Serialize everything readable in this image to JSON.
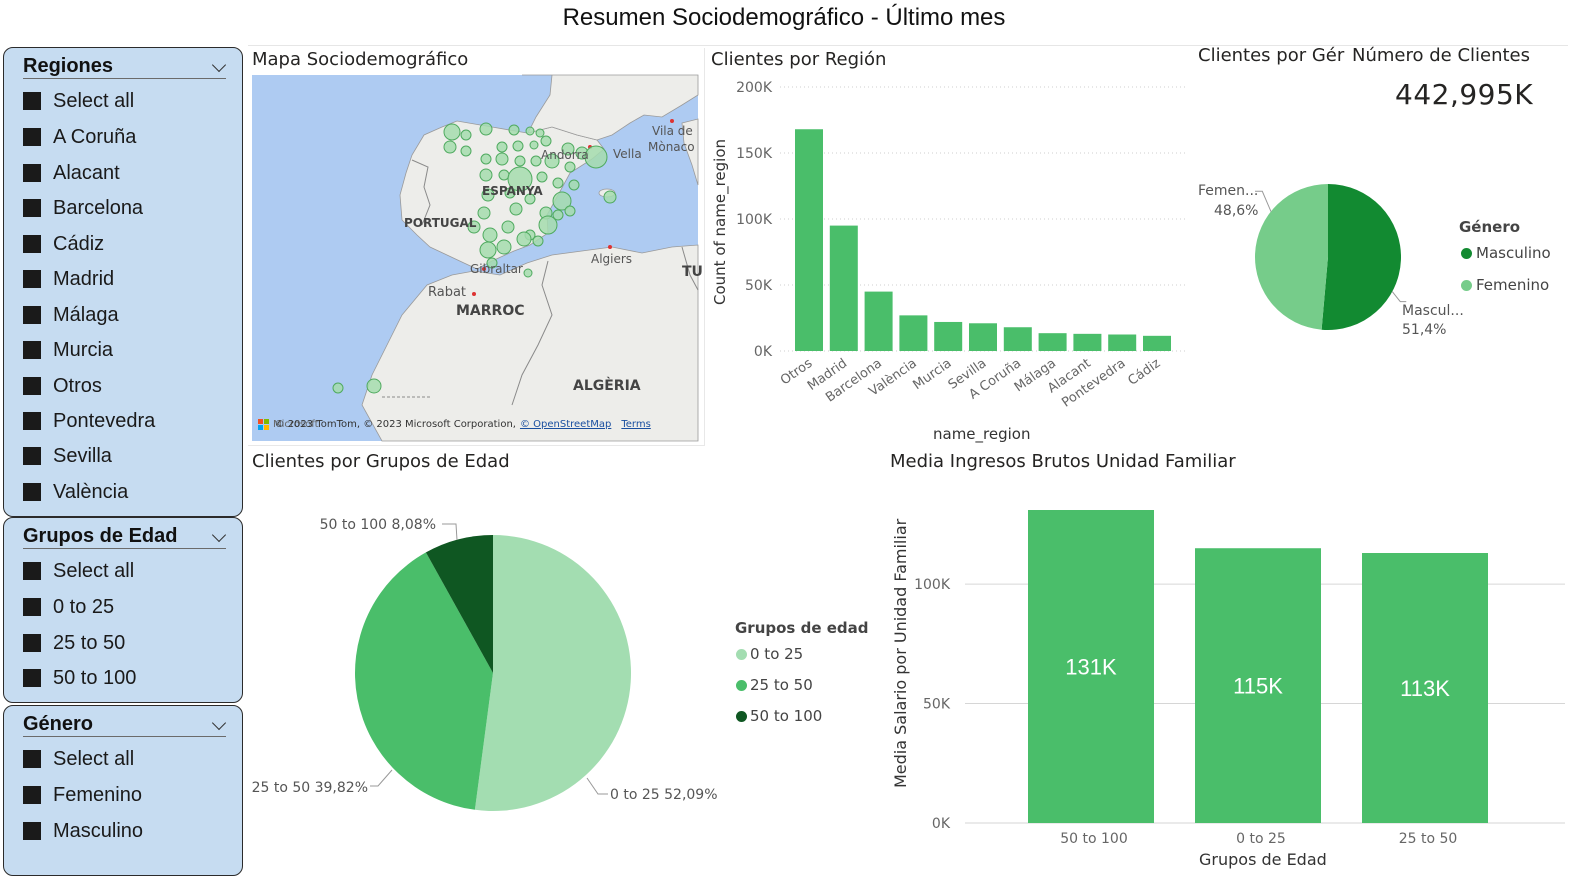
{
  "page": {
    "title": "Resumen Sociodemográfico - Último mes"
  },
  "slicers": {
    "regions": {
      "title": "Regiones",
      "items": [
        "Select all",
        "A Coruña",
        "Alacant",
        "Barcelona",
        "Cádiz",
        "Madrid",
        "Málaga",
        "Murcia",
        "Otros",
        "Pontevedra",
        "Sevilla",
        "València"
      ]
    },
    "age": {
      "title": "Grupos de Edad",
      "items": [
        "Select all",
        "0 to 25",
        "25 to 50",
        "50 to 100"
      ]
    },
    "gender": {
      "title": "Género",
      "items": [
        "Select all",
        "Femenino",
        "Masculino"
      ]
    }
  },
  "map": {
    "title": "Mapa Sociodemográfico",
    "labels": {
      "portugal": "PORTUGAL",
      "espanya": "ESPANYA",
      "andorra": "Andorra",
      "vella": "Vella",
      "vila_de": "Vila de",
      "monaco": "Mònaco",
      "gibraltar": "Gibraltar",
      "algiers": "Algiers",
      "rabat": "Rabat",
      "marroc": "MARROC",
      "algeria": "ALGÈRIA",
      "tu": "TU"
    },
    "attribution": {
      "logo": "Microsoft",
      "text": "© 2023 TomTom, © 2023 Microsoft Corporation,",
      "osm": "© OpenStreetMap",
      "terms": "Terms"
    }
  },
  "region_chart": {
    "title": "Clientes por Región",
    "chart_data": {
      "type": "bar",
      "categories": [
        "Otros",
        "Madrid",
        "Barcelona",
        "València",
        "Murcia",
        "Sevilla",
        "A Coruña",
        "Málaga",
        "Alacant",
        "Pontevedra",
        "Cádiz"
      ],
      "values": [
        168000,
        95000,
        45000,
        27000,
        22000,
        21000,
        18000,
        13500,
        13000,
        12500,
        11500
      ],
      "xlabel": "name_region",
      "ylabel": "Count of name_region",
      "ylim": [
        0,
        200000
      ],
      "ticks": [
        0,
        50000,
        100000,
        150000,
        200000
      ],
      "tick_labels": [
        "0K",
        "50K",
        "100K",
        "150K",
        "200K"
      ],
      "grid": true,
      "color": "#4abe6a"
    }
  },
  "gender_chart": {
    "title": "Clientes por Gér",
    "chart_data": {
      "type": "pie",
      "categories": [
        "Masculino",
        "Femenino"
      ],
      "values": [
        51.4,
        48.6
      ],
      "data_labels": [
        "51,4%",
        "48,6%"
      ],
      "short_labels": [
        "Mascul...",
        "Femen..."
      ],
      "legend_title": "Género",
      "legend_position": "right",
      "colors": [
        "#128a31",
        "#76cc8a"
      ]
    }
  },
  "kpi": {
    "title": "Número de Clientes",
    "value": "442,995K"
  },
  "age_chart": {
    "title": "Clientes por Grupos de Edad",
    "chart_data": {
      "type": "pie",
      "categories": [
        "0 to 25",
        "25 to 50",
        "50 to 100"
      ],
      "values": [
        52.09,
        39.82,
        8.08
      ],
      "data_labels": [
        "0 to 25 52,09%",
        "25 to 50 39,82%",
        "50 to 100 8,08%"
      ],
      "legend_title": "Grupos de edad",
      "legend_position": "right",
      "colors": [
        "#a3ddb1",
        "#4abe6a",
        "#0f5722"
      ]
    }
  },
  "income_chart": {
    "title": "Media Ingresos Brutos Unidad Familiar",
    "chart_data": {
      "type": "bar",
      "categories": [
        "50 to 100",
        "0 to 25",
        "25 to 50"
      ],
      "values": [
        131000,
        115000,
        113000
      ],
      "data_labels": [
        "131K",
        "115K",
        "113K"
      ],
      "xlabel": "Grupos de Edad",
      "ylabel": "Media Salario por Unidad Familiar",
      "ylim": [
        0,
        131000
      ],
      "ticks": [
        0,
        50000,
        100000
      ],
      "tick_labels": [
        "0K",
        "50K",
        "100K"
      ],
      "grid": true,
      "color": "#4abe6a"
    }
  }
}
